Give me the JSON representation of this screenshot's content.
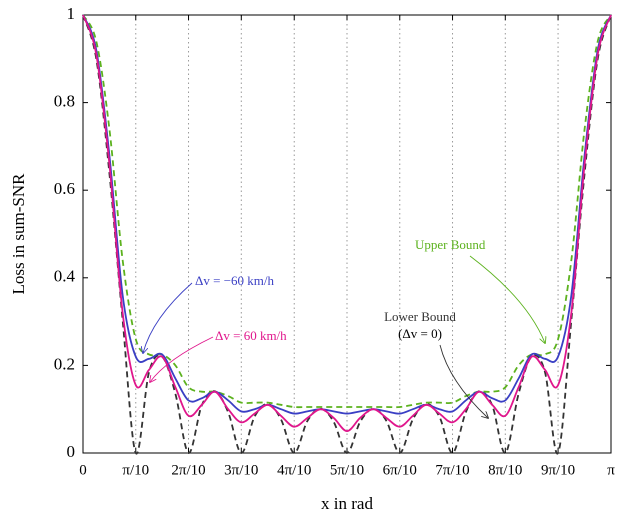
{
  "chart_data": {
    "type": "line",
    "xlabel": "x in rad",
    "ylabel": "Loss in sum-SNR",
    "x": [
      0,
      0.079,
      0.157,
      0.236,
      0.314,
      0.393,
      0.471,
      0.55,
      0.628,
      0.707,
      0.785,
      0.864,
      0.942,
      1.021,
      1.1,
      1.178,
      1.257,
      1.335,
      1.414,
      1.492,
      1.571,
      1.649,
      1.728,
      1.806,
      1.885,
      1.963,
      2.042,
      2.121,
      2.199,
      2.278,
      2.356,
      2.435,
      2.513,
      2.592,
      2.67,
      2.749,
      2.827,
      2.906,
      2.985,
      3.063,
      3.142
    ],
    "series": [
      {
        "name": "Upper Bound",
        "color": "#5cb21e",
        "dashed": true,
        "values": [
          1,
          0.94,
          0.74,
          0.44,
          0.26,
          0.225,
          0.225,
          0.2,
          0.15,
          0.14,
          0.14,
          0.13,
          0.115,
          0.115,
          0.115,
          0.11,
          0.105,
          0.105,
          0.105,
          0.105,
          0.105,
          0.105,
          0.105,
          0.105,
          0.105,
          0.11,
          0.115,
          0.115,
          0.115,
          0.13,
          0.14,
          0.14,
          0.15,
          0.2,
          0.225,
          0.225,
          0.26,
          0.44,
          0.74,
          0.94,
          1
        ]
      },
      {
        "name": "Δv = −60 km/h",
        "color": "#3a3fc4",
        "dashed": false,
        "values": [
          1,
          0.92,
          0.68,
          0.36,
          0.22,
          0.215,
          0.225,
          0.17,
          0.12,
          0.125,
          0.14,
          0.12,
          0.095,
          0.1,
          0.11,
          0.1,
          0.09,
          0.095,
          0.1,
          0.095,
          0.09,
          0.095,
          0.1,
          0.095,
          0.09,
          0.1,
          0.11,
          0.1,
          0.095,
          0.12,
          0.14,
          0.125,
          0.12,
          0.17,
          0.225,
          0.215,
          0.22,
          0.36,
          0.68,
          0.92,
          1
        ]
      },
      {
        "name": "Δv = 60 km/h",
        "color": "#e0168c",
        "dashed": false,
        "values": [
          1,
          0.91,
          0.66,
          0.32,
          0.155,
          0.19,
          0.22,
          0.15,
          0.085,
          0.11,
          0.14,
          0.1,
          0.07,
          0.09,
          0.11,
          0.085,
          0.06,
          0.08,
          0.1,
          0.08,
          0.05,
          0.08,
          0.1,
          0.08,
          0.06,
          0.085,
          0.11,
          0.09,
          0.07,
          0.1,
          0.14,
          0.11,
          0.085,
          0.15,
          0.22,
          0.19,
          0.155,
          0.32,
          0.66,
          0.91,
          1
        ]
      },
      {
        "name": "Lower Bound",
        "color": "#333333",
        "dashed": true,
        "values": [
          1,
          0.9,
          0.639,
          0.303,
          0,
          0.185,
          0.22,
          0.135,
          0,
          0.109,
          0.141,
          0.093,
          0,
          0.083,
          0.112,
          0.077,
          0,
          0.073,
          0.101,
          0.071,
          0,
          0.071,
          0.101,
          0.073,
          0,
          0.077,
          0.112,
          0.083,
          0,
          0.093,
          0.141,
          0.109,
          0,
          0.135,
          0.22,
          0.185,
          0,
          0.303,
          0.639,
          0.9,
          1
        ]
      }
    ],
    "annotations": [
      "(Δv = 0)"
    ],
    "xlim": [
      0,
      3.142
    ],
    "ylim": [
      0,
      1
    ],
    "xticks": [
      0,
      {
        "value": 0.314,
        "label": "π/10"
      },
      {
        "value": 0.628,
        "label": "2π/10"
      },
      {
        "value": 0.942,
        "label": "3π/10"
      },
      {
        "value": 1.257,
        "label": "4π/10"
      },
      {
        "value": 1.571,
        "label": "5π/10"
      },
      {
        "value": 1.885,
        "label": "6π/10"
      },
      {
        "value": 2.199,
        "label": "7π/10"
      },
      {
        "value": 2.513,
        "label": "8π/10"
      },
      {
        "value": 2.827,
        "label": "9π/10"
      },
      {
        "value": 3.142,
        "label": "π"
      }
    ],
    "yticks": [
      0,
      0.2,
      0.4,
      0.6,
      0.8,
      1
    ],
    "grid": "x"
  }
}
